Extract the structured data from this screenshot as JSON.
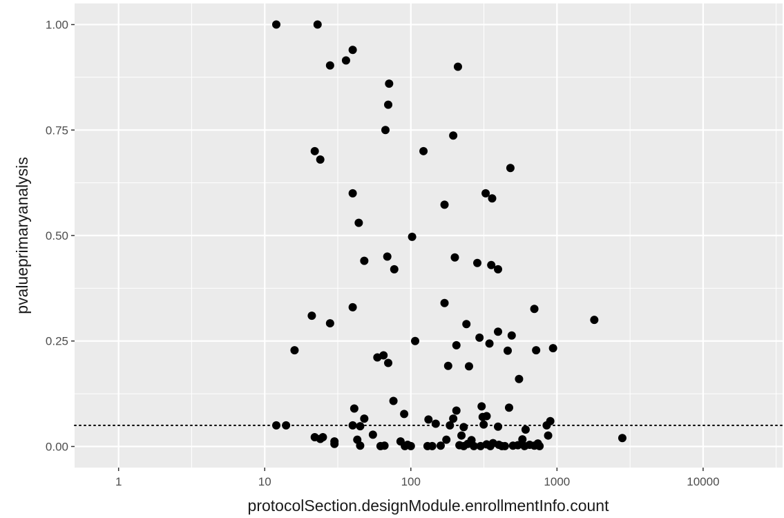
{
  "chart_data": {
    "type": "scatter",
    "title": "",
    "xlabel": "protocolSection.designModule.enrollmentInfo.count",
    "ylabel": "pvalueprimaryanalysis",
    "x_scale": "log10",
    "xlim": [
      0.5,
      35000
    ],
    "ylim": [
      -0.05,
      1.05
    ],
    "grid": true,
    "legend": "none",
    "x_ticks": [
      {
        "value": 1,
        "label": "1"
      },
      {
        "value": 10,
        "label": "10"
      },
      {
        "value": 100,
        "label": "100"
      },
      {
        "value": 1000,
        "label": "1000"
      },
      {
        "value": 10000,
        "label": "10000"
      }
    ],
    "y_ticks": [
      {
        "value": 0,
        "label": "0.00"
      },
      {
        "value": 0.25,
        "label": "0.25"
      },
      {
        "value": 0.5,
        "label": "0.50"
      },
      {
        "value": 0.75,
        "label": "0.75"
      },
      {
        "value": 1,
        "label": "1.00"
      }
    ],
    "reference_line": {
      "y": 0.05,
      "style": "dotted"
    },
    "colors": {
      "panel": "#ebebeb",
      "grid": "#ffffff",
      "point": "#000000",
      "tick_text": "#4d4d4d",
      "title_text": "#1a1a1a"
    },
    "points": [
      [
        12,
        1.0
      ],
      [
        23,
        1.0
      ],
      [
        28,
        0.903
      ],
      [
        36,
        0.915
      ],
      [
        40,
        0.94
      ],
      [
        210,
        0.9
      ],
      [
        71,
        0.86
      ],
      [
        70,
        0.81
      ],
      [
        67,
        0.75
      ],
      [
        195,
        0.737
      ],
      [
        22,
        0.7
      ],
      [
        24,
        0.68
      ],
      [
        122,
        0.7
      ],
      [
        480,
        0.66
      ],
      [
        40,
        0.6
      ],
      [
        170,
        0.573
      ],
      [
        325,
        0.6
      ],
      [
        360,
        0.588
      ],
      [
        44,
        0.53
      ],
      [
        102,
        0.497
      ],
      [
        48,
        0.44
      ],
      [
        69,
        0.45
      ],
      [
        77,
        0.42
      ],
      [
        200,
        0.448
      ],
      [
        285,
        0.435
      ],
      [
        355,
        0.43
      ],
      [
        395,
        0.42
      ],
      [
        40,
        0.33
      ],
      [
        21,
        0.31
      ],
      [
        28,
        0.292
      ],
      [
        170,
        0.34
      ],
      [
        240,
        0.29
      ],
      [
        700,
        0.326
      ],
      [
        1800,
        0.3
      ],
      [
        16,
        0.228
      ],
      [
        59,
        0.211
      ],
      [
        65,
        0.216
      ],
      [
        70,
        0.198
      ],
      [
        107,
        0.25
      ],
      [
        180,
        0.191
      ],
      [
        205,
        0.24
      ],
      [
        250,
        0.19
      ],
      [
        295,
        0.258
      ],
      [
        345,
        0.244
      ],
      [
        395,
        0.272
      ],
      [
        460,
        0.227
      ],
      [
        490,
        0.263
      ],
      [
        720,
        0.228
      ],
      [
        940,
        0.233
      ],
      [
        550,
        0.16
      ],
      [
        76,
        0.108
      ],
      [
        90,
        0.077
      ],
      [
        41,
        0.09
      ],
      [
        305,
        0.095
      ],
      [
        470,
        0.092
      ],
      [
        205,
        0.085
      ],
      [
        12,
        0.05
      ],
      [
        14,
        0.05
      ],
      [
        40,
        0.05
      ],
      [
        45,
        0.048
      ],
      [
        48,
        0.066
      ],
      [
        132,
        0.064
      ],
      [
        148,
        0.054
      ],
      [
        195,
        0.066
      ],
      [
        230,
        0.046
      ],
      [
        310,
        0.07
      ],
      [
        330,
        0.072
      ],
      [
        315,
        0.052
      ],
      [
        185,
        0.05
      ],
      [
        395,
        0.047
      ],
      [
        850,
        0.05
      ],
      [
        900,
        0.06
      ],
      [
        55,
        0.028
      ],
      [
        22,
        0.022
      ],
      [
        25,
        0.022
      ],
      [
        30,
        0.012
      ],
      [
        43,
        0.016
      ],
      [
        62,
        0.001
      ],
      [
        85,
        0.012
      ],
      [
        95,
        0.004
      ],
      [
        175,
        0.016
      ],
      [
        222,
        0.026
      ],
      [
        260,
        0.015
      ],
      [
        610,
        0.04
      ],
      [
        870,
        0.026
      ],
      [
        2800,
        0.02
      ],
      [
        24,
        0.018
      ],
      [
        30,
        0.006
      ],
      [
        45,
        0.002
      ],
      [
        66,
        0.002
      ],
      [
        91,
        0.001
      ],
      [
        100,
        0.001
      ],
      [
        140,
        0.001
      ],
      [
        160,
        0.002
      ],
      [
        215,
        0.003
      ],
      [
        245,
        0.006
      ],
      [
        270,
        0.001
      ],
      [
        300,
        0.001
      ],
      [
        330,
        0.005
      ],
      [
        365,
        0.008
      ],
      [
        400,
        0.004
      ],
      [
        440,
        0.001
      ],
      [
        500,
        0.002
      ],
      [
        540,
        0.003
      ],
      [
        580,
        0.017
      ],
      [
        650,
        0.004
      ],
      [
        700,
        0.002
      ],
      [
        760,
        0.001
      ],
      [
        350,
        0.001
      ],
      [
        420,
        0.001
      ],
      [
        230,
        0.001
      ],
      [
        130,
        0.001
      ],
      [
        600,
        0.001
      ],
      [
        740,
        0.007
      ]
    ]
  }
}
